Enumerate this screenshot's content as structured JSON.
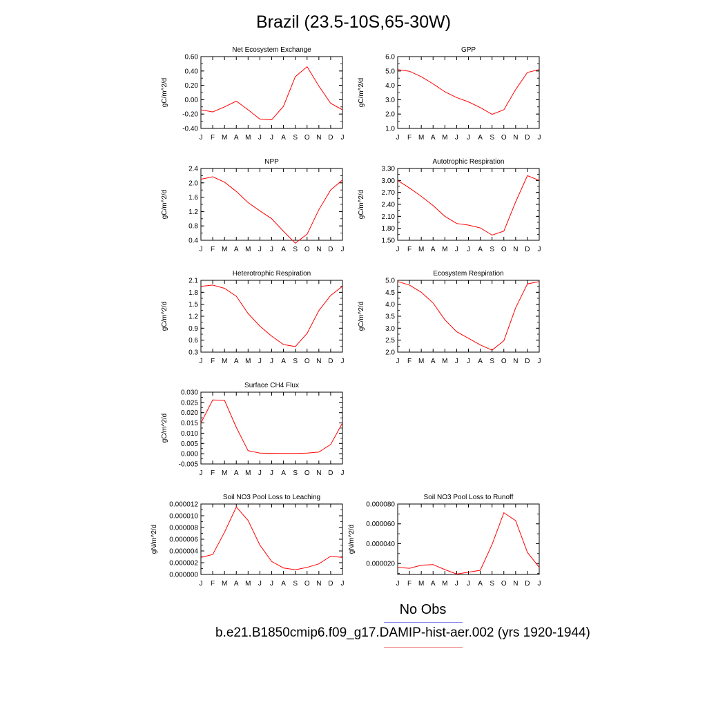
{
  "page": {
    "title": "Brazil (23.5-10S,65-30W)"
  },
  "legend": {
    "obs_label": "No Obs",
    "obs_color": "#0000ff",
    "run_label": "b.e21.B1850cmip6.f09_g17.DAMIP-hist-aer.002 (yrs 1920-1944)",
    "run_color": "#ff0000"
  },
  "chart_data": [
    {
      "type": "line",
      "title": "Net Ecosystem Exchange",
      "ylabel": "gC/m^2/d",
      "categories": [
        "J",
        "F",
        "M",
        "A",
        "M",
        "J",
        "J",
        "A",
        "S",
        "O",
        "N",
        "D",
        "J"
      ],
      "ylim": [
        -0.4,
        0.6
      ],
      "yticks": [
        "0.60",
        "0.40",
        "0.20",
        "0.00",
        "-0.20",
        "-0.40"
      ],
      "series": [
        {
          "color": "#ff0000",
          "values": [
            -0.14,
            -0.17,
            -0.1,
            -0.02,
            -0.14,
            -0.27,
            -0.28,
            -0.09,
            0.32,
            0.46,
            0.19,
            -0.05,
            -0.14
          ]
        }
      ]
    },
    {
      "type": "line",
      "title": "GPP",
      "ylabel": "gC/m^2/d",
      "categories": [
        "J",
        "F",
        "M",
        "A",
        "M",
        "J",
        "J",
        "A",
        "S",
        "O",
        "N",
        "D",
        "J"
      ],
      "ylim": [
        1.0,
        6.0
      ],
      "yticks": [
        "6.0",
        "5.0",
        "4.0",
        "3.0",
        "2.0",
        "1.0"
      ],
      "series": [
        {
          "color": "#ff0000",
          "values": [
            5.1,
            4.98,
            4.6,
            4.1,
            3.55,
            3.15,
            2.85,
            2.45,
            1.98,
            2.3,
            3.7,
            4.9,
            5.1
          ]
        }
      ]
    },
    {
      "type": "line",
      "title": "NPP",
      "ylabel": "gC/m^2/d",
      "categories": [
        "J",
        "F",
        "M",
        "A",
        "M",
        "J",
        "J",
        "A",
        "S",
        "O",
        "N",
        "D",
        "J"
      ],
      "ylim": [
        0.4,
        2.4
      ],
      "yticks": [
        "2.4",
        "2.0",
        "1.6",
        "1.2",
        "0.8",
        "0.4"
      ],
      "series": [
        {
          "color": "#ff0000",
          "values": [
            2.1,
            2.17,
            2.02,
            1.76,
            1.45,
            1.22,
            1.0,
            0.65,
            0.32,
            0.57,
            1.25,
            1.8,
            2.08
          ]
        }
      ]
    },
    {
      "type": "line",
      "title": "Autotrophic Respiration",
      "ylabel": "gC/m^2/d",
      "categories": [
        "J",
        "F",
        "M",
        "A",
        "M",
        "J",
        "J",
        "A",
        "S",
        "O",
        "N",
        "D",
        "J"
      ],
      "ylim": [
        1.5,
        3.3
      ],
      "yticks": [
        "3.30",
        "3.00",
        "2.70",
        "2.40",
        "2.10",
        "1.80",
        "1.50"
      ],
      "series": [
        {
          "color": "#ff0000",
          "values": [
            3.0,
            2.81,
            2.6,
            2.37,
            2.1,
            1.92,
            1.88,
            1.81,
            1.63,
            1.73,
            2.46,
            3.12,
            3.0
          ]
        }
      ]
    },
    {
      "type": "line",
      "title": "Heterotrophic Respiration",
      "ylabel": "gC/m^2/d",
      "categories": [
        "J",
        "F",
        "M",
        "A",
        "M",
        "J",
        "J",
        "A",
        "S",
        "O",
        "N",
        "D",
        "J"
      ],
      "ylim": [
        0.3,
        2.1
      ],
      "yticks": [
        "2.1",
        "1.8",
        "1.5",
        "1.2",
        "0.9",
        "0.6",
        "0.3"
      ],
      "series": [
        {
          "color": "#ff0000",
          "values": [
            1.95,
            1.98,
            1.9,
            1.7,
            1.27,
            0.95,
            0.7,
            0.49,
            0.44,
            0.77,
            1.34,
            1.72,
            1.95
          ]
        }
      ]
    },
    {
      "type": "line",
      "title": "Ecosystem Respiration",
      "ylabel": "gC/m^2/d",
      "categories": [
        "J",
        "F",
        "M",
        "A",
        "M",
        "J",
        "J",
        "A",
        "S",
        "O",
        "N",
        "D",
        "J"
      ],
      "ylim": [
        2.0,
        5.0
      ],
      "yticks": [
        "5.0",
        "4.5",
        "4.0",
        "3.5",
        "3.0",
        "2.5",
        "2.0"
      ],
      "series": [
        {
          "color": "#ff0000",
          "values": [
            4.95,
            4.8,
            4.5,
            4.05,
            3.35,
            2.85,
            2.58,
            2.3,
            2.08,
            2.48,
            3.85,
            4.85,
            4.95
          ]
        }
      ]
    },
    {
      "type": "line",
      "title": "Surface CH4 Flux",
      "ylabel": "gC/m^2/d",
      "categories": [
        "J",
        "F",
        "M",
        "A",
        "M",
        "J",
        "J",
        "A",
        "S",
        "O",
        "N",
        "D",
        "J"
      ],
      "ylim": [
        -0.005,
        0.03
      ],
      "yticks": [
        "0.030",
        "0.025",
        "0.020",
        "0.015",
        "0.010",
        "0.005",
        "0.000",
        "-0.005"
      ],
      "series": [
        {
          "color": "#ff0000",
          "values": [
            0.015,
            0.0262,
            0.026,
            0.0128,
            0.0015,
            0.0003,
            0.0002,
            0.0001,
            0.0001,
            0.0003,
            0.0008,
            0.0045,
            0.015
          ]
        }
      ]
    },
    {
      "type": "line",
      "title": "Soil NO3 Pool Loss to Leaching",
      "ylabel": "gN/m^2/d",
      "categories": [
        "J",
        "F",
        "M",
        "A",
        "M",
        "J",
        "J",
        "A",
        "S",
        "O",
        "N",
        "D",
        "J"
      ],
      "ylim": [
        0.0,
        1.2e-05
      ],
      "yticks": [
        "0.000012",
        "0.000010",
        "0.000008",
        "0.000006",
        "0.000004",
        "0.000002",
        "0.000000"
      ],
      "series": [
        {
          "color": "#ff0000",
          "values": [
            2.9e-06,
            3.4e-06,
            7.2e-06,
            1.15e-05,
            9.2e-06,
            5e-06,
            2.2e-06,
            1.1e-06,
            8e-07,
            1.2e-06,
            1.8e-06,
            3.1e-06,
            2.9e-06
          ]
        }
      ]
    },
    {
      "type": "line",
      "title": "Soil NO3 Pool Loss to Runoff",
      "ylabel": "gN/m^2/d",
      "categories": [
        "J",
        "F",
        "M",
        "A",
        "M",
        "J",
        "J",
        "A",
        "S",
        "O",
        "N",
        "D",
        "J"
      ],
      "ylim": [
        9e-06,
        8e-05
      ],
      "yticks": [
        "0.000080",
        "0.000060",
        "0.000040",
        "0.000020"
      ],
      "ytick_values": [
        8e-05,
        6e-05,
        4e-05,
        2e-05
      ],
      "series": [
        {
          "color": "#ff0000",
          "values": [
            1.61e-05,
            1.52e-05,
            1.83e-05,
            1.89e-05,
            1.39e-05,
            9.4e-06,
            1.12e-05,
            1.32e-05,
            3.92e-05,
            7.12e-05,
            6.32e-05,
            3.12e-05,
            1.62e-05
          ]
        }
      ]
    }
  ]
}
